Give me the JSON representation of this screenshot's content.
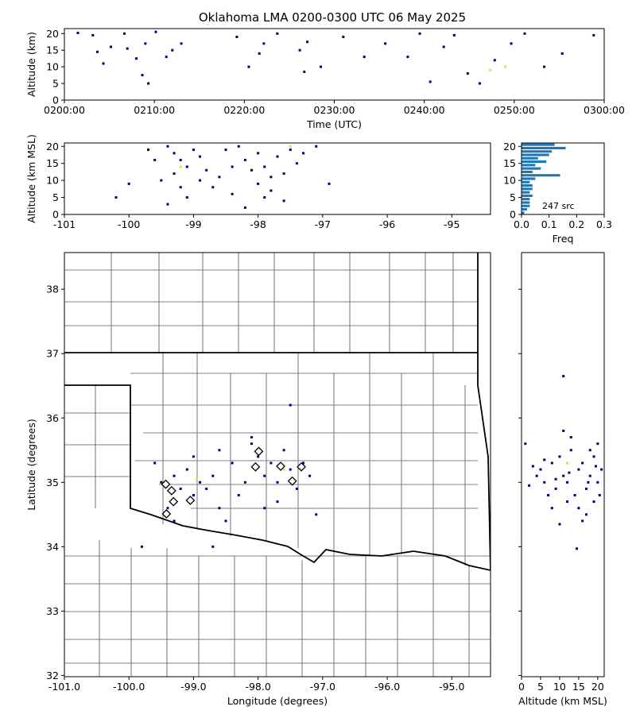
{
  "chart_data": [
    {
      "type": "scatter",
      "title": "Oklahoma LMA 0200-0300 UTC 06 May 2025",
      "xlabel": "Time (UTC)",
      "ylabel": "Altitude (km)",
      "xlim": [
        "0200:00",
        "0300:00"
      ],
      "xticks": [
        "0200:00",
        "0210:00",
        "0220:00",
        "0230:00",
        "0240:00",
        "0250:00",
        "0300:00"
      ],
      "ylim": [
        0,
        21.5
      ],
      "yticks": [
        0,
        5,
        10,
        15,
        20
      ],
      "series": [
        {
          "color": "#00007a",
          "x": [
            "0201:30",
            "0203:10",
            "0203:40",
            "0204:20",
            "0205:10",
            "0206:40",
            "0207:00",
            "0208:00",
            "0208:40",
            "0209:00",
            "0209:20",
            "0210:10",
            "0211:20",
            "0212:00",
            "0213:00",
            "0219:10",
            "0220:30",
            "0221:40",
            "0222:10",
            "0223:40",
            "0226:10",
            "0226:40",
            "0227:00",
            "0228:30",
            "0231:00",
            "0233:20",
            "0235:40",
            "0238:10",
            "0239:30",
            "0240:40",
            "0242:10",
            "0243:20",
            "0244:50",
            "0246:10",
            "0247:50",
            "0249:40",
            "0251:10",
            "0253:20",
            "0255:20",
            "0258:50"
          ],
          "y": [
            20.2,
            19.5,
            14.5,
            11,
            16,
            20,
            15.5,
            12.5,
            7.5,
            17,
            5,
            20.5,
            13,
            15,
            17,
            19,
            10,
            14,
            17,
            20,
            15,
            8.5,
            17.5,
            10,
            19,
            13,
            17,
            13,
            20,
            5.5,
            16,
            19.5,
            8,
            5,
            12,
            17,
            20,
            10,
            14,
            19.5
          ]
        },
        {
          "color": "#e8d84a",
          "x": [
            "0247:20",
            "0249:00"
          ],
          "y": [
            9,
            10
          ]
        }
      ]
    },
    {
      "type": "scatter",
      "ylabel": "Altitude (km MSL)",
      "xlim": [
        -101.0,
        -94.4
      ],
      "xticks": [
        -101,
        -100,
        -99,
        -98,
        -97,
        -96,
        -95
      ],
      "ylim": [
        0,
        21
      ],
      "yticks": [
        0,
        5,
        10,
        15,
        20
      ],
      "series": [
        {
          "color": "#00007a",
          "x": [
            -99.4,
            -99.3,
            -99.2,
            -99.1,
            -99.3,
            -99.5,
            -99.0,
            -98.9,
            -98.8,
            -99.2,
            -99.1,
            -98.6,
            -98.5,
            -98.3,
            -98.2,
            -98.1,
            -98.0,
            -98.0,
            -97.9,
            -97.8,
            -97.7,
            -97.6,
            -97.5,
            -97.4,
            -97.3,
            -97.1,
            -98.4,
            -97.8,
            -100.2,
            -100.0,
            -99.6,
            -98.7,
            -98.2,
            -97.9,
            -96.9,
            -99.4,
            -98.4,
            -98.9,
            -97.6,
            -99.7
          ],
          "y": [
            20,
            18,
            16,
            14,
            12,
            10,
            19,
            17,
            13,
            8,
            5,
            11,
            19,
            20,
            16,
            13,
            9,
            18,
            14,
            11,
            17,
            12,
            19,
            15,
            18,
            20,
            6,
            7,
            5,
            9,
            16,
            8,
            2,
            5,
            9,
            3,
            14,
            10,
            4,
            19
          ]
        },
        {
          "color": "#e8d84a",
          "x": [
            -99.2,
            -97.5
          ],
          "y": [
            14,
            20
          ]
        }
      ]
    },
    {
      "type": "histogram",
      "orientation": "horizontal",
      "xlabel": "Freq",
      "annotation": "247 src",
      "color": "#1f77b4",
      "xlim": [
        0,
        0.3
      ],
      "xticks": [
        {
          "value": 0,
          "label": "0.0"
        },
        {
          "value": 0.1,
          "label": "0.1"
        },
        {
          "value": 0.2,
          "label": "0.2"
        },
        {
          "value": 0.3,
          "label": "0.3"
        }
      ],
      "ylim": [
        0,
        21
      ],
      "yticks": [
        0,
        5,
        10,
        15,
        20
      ],
      "bins": [
        0,
        1,
        2,
        3,
        4,
        5,
        6,
        7,
        8,
        9,
        10,
        11,
        12,
        13,
        14,
        15,
        16,
        17,
        18,
        19,
        20,
        21
      ],
      "values": [
        0.01,
        0.02,
        0.03,
        0.03,
        0.03,
        0.04,
        0.03,
        0.04,
        0.04,
        0.03,
        0.05,
        0.14,
        0.04,
        0.07,
        0.05,
        0.09,
        0.06,
        0.1,
        0.11,
        0.16,
        0.12
      ]
    },
    {
      "type": "scatter",
      "xlabel": "Longitude (degrees)",
      "ylabel": "Latitude (degrees)",
      "xlim": [
        -101.0,
        -94.4
      ],
      "xticks": [
        {
          "value": -101,
          "label": "-101.0"
        },
        {
          "value": -100,
          "label": "-100.0"
        },
        {
          "value": -99,
          "label": "-99.0"
        },
        {
          "value": -98,
          "label": "-98.0"
        },
        {
          "value": -97,
          "label": "-97.0"
        },
        {
          "value": -96,
          "label": "-96.0"
        },
        {
          "value": -95,
          "label": "-95.0"
        }
      ],
      "ylim": [
        31.98,
        38.57
      ],
      "yticks": [
        32,
        33,
        34,
        35,
        36,
        37,
        38
      ],
      "series": [
        {
          "color": "#00007a",
          "x": [
            -99.5,
            -99.3,
            -99.2,
            -99.1,
            -99.0,
            -98.9,
            -98.8,
            -98.7,
            -98.6,
            -98.4,
            -98.3,
            -98.2,
            -98.1,
            -98.0,
            -97.9,
            -97.8,
            -97.7,
            -97.6,
            -97.5,
            -97.4,
            -97.3,
            -97.1,
            -99.4,
            -99.6,
            -98.5,
            -97.9,
            -97.5,
            -99.8,
            -98.7,
            -98.1,
            -99.0,
            -97.2,
            -98.6,
            -99.3,
            -97.7
          ],
          "y": [
            35.0,
            35.1,
            34.9,
            35.2,
            34.8,
            35.0,
            34.9,
            35.1,
            34.6,
            35.3,
            34.8,
            35.0,
            35.6,
            35.4,
            35.1,
            35.3,
            35.0,
            35.5,
            35.2,
            34.9,
            35.3,
            34.5,
            34.6,
            35.3,
            34.4,
            34.6,
            36.2,
            34.0,
            34.0,
            35.7,
            35.4,
            35.1,
            35.5,
            34.4,
            34.7
          ]
        },
        {
          "color": "#e8d84a",
          "x": [
            -98.95,
            -97.6
          ],
          "y": [
            35.05,
            35.2
          ]
        },
        {
          "color": "#000000",
          "marker": "diamond",
          "x": [
            -99.43,
            -99.34,
            -99.31,
            -99.05,
            -99.42,
            -97.99,
            -98.04,
            -97.65,
            -97.33,
            -97.47
          ],
          "y": [
            34.97,
            34.87,
            34.7,
            34.72,
            34.51,
            35.48,
            35.24,
            35.25,
            35.24,
            35.02
          ]
        }
      ]
    },
    {
      "type": "scatter",
      "xlabel": "Altitude (km MSL)",
      "xlim": [
        0,
        21.7
      ],
      "xticks": [
        0,
        5,
        10,
        15,
        20
      ],
      "ylim": [
        31.98,
        38.57
      ],
      "series": [
        {
          "color": "#00007a",
          "x": [
            1,
            3,
            5,
            6,
            8,
            9,
            10,
            11,
            12,
            13,
            14,
            15,
            16,
            17,
            18,
            19,
            20,
            21,
            19,
            17,
            15,
            13,
            12,
            11,
            10,
            9,
            7,
            6,
            4,
            2,
            14.5,
            11,
            20,
            18,
            16,
            20.5,
            17.5,
            12.5,
            19.5,
            8
          ],
          "y": [
            35.6,
            35.25,
            35.2,
            35.0,
            35.3,
            34.9,
            35.4,
            35.1,
            35.0,
            35.5,
            34.8,
            35.2,
            35.3,
            34.9,
            35.1,
            35.4,
            35.0,
            35.2,
            34.7,
            34.5,
            34.6,
            35.7,
            34.7,
            35.8,
            34.35,
            35.05,
            34.8,
            35.35,
            35.1,
            34.95,
            33.97,
            36.65,
            35.6,
            35.5,
            34.4,
            34.8,
            35.0,
            35.15,
            35.25,
            34.6
          ]
        },
        {
          "color": "#e8d84a",
          "x": [
            12
          ],
          "y": [
            35.3
          ]
        }
      ]
    }
  ]
}
